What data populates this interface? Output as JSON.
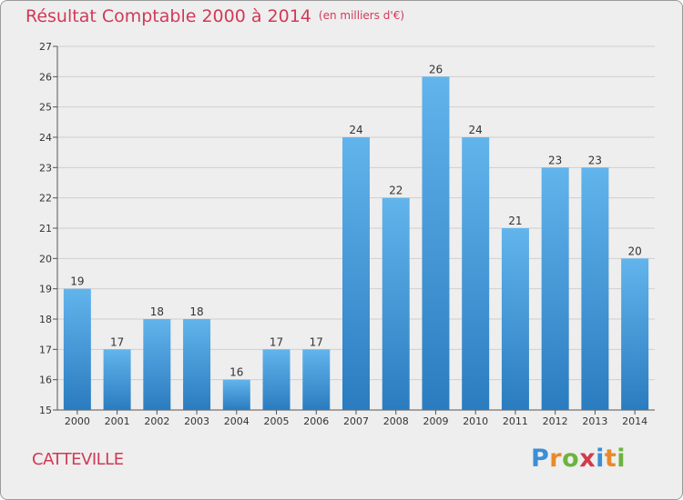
{
  "header": {
    "title": "Résultat Comptable 2000 à 2014",
    "unit": "(en milliers d'€)"
  },
  "footer": {
    "city": "CATTEVILLE",
    "logo": {
      "letters": [
        "P",
        "r",
        "o",
        "x",
        "i",
        "t",
        "i"
      ],
      "colors": [
        "#3a8fd6",
        "#e8892b",
        "#6cb33f",
        "#d23a4a",
        "#3a8fd6",
        "#e8892b",
        "#6cb33f"
      ]
    }
  },
  "colors": {
    "bar_light": "#62b4ec",
    "bar_dark": "#2a7cc0",
    "title": "#d03a56",
    "grid": "#cfcfcf"
  },
  "chart_data": {
    "type": "bar",
    "title": "Résultat Comptable 2000 à 2014",
    "xlabel": "",
    "ylabel": "",
    "ylim": [
      15,
      27
    ],
    "yticks": [
      15,
      16,
      17,
      18,
      19,
      20,
      21,
      22,
      23,
      24,
      25,
      26,
      27
    ],
    "categories": [
      "2000",
      "2001",
      "2002",
      "2003",
      "2004",
      "2005",
      "2006",
      "2007",
      "2008",
      "2009",
      "2010",
      "2011",
      "2012",
      "2013",
      "2014"
    ],
    "values": [
      19,
      17,
      18,
      18,
      16,
      17,
      17,
      24,
      22,
      26,
      24,
      21,
      23,
      23,
      20
    ],
    "grid": "horizontal"
  }
}
